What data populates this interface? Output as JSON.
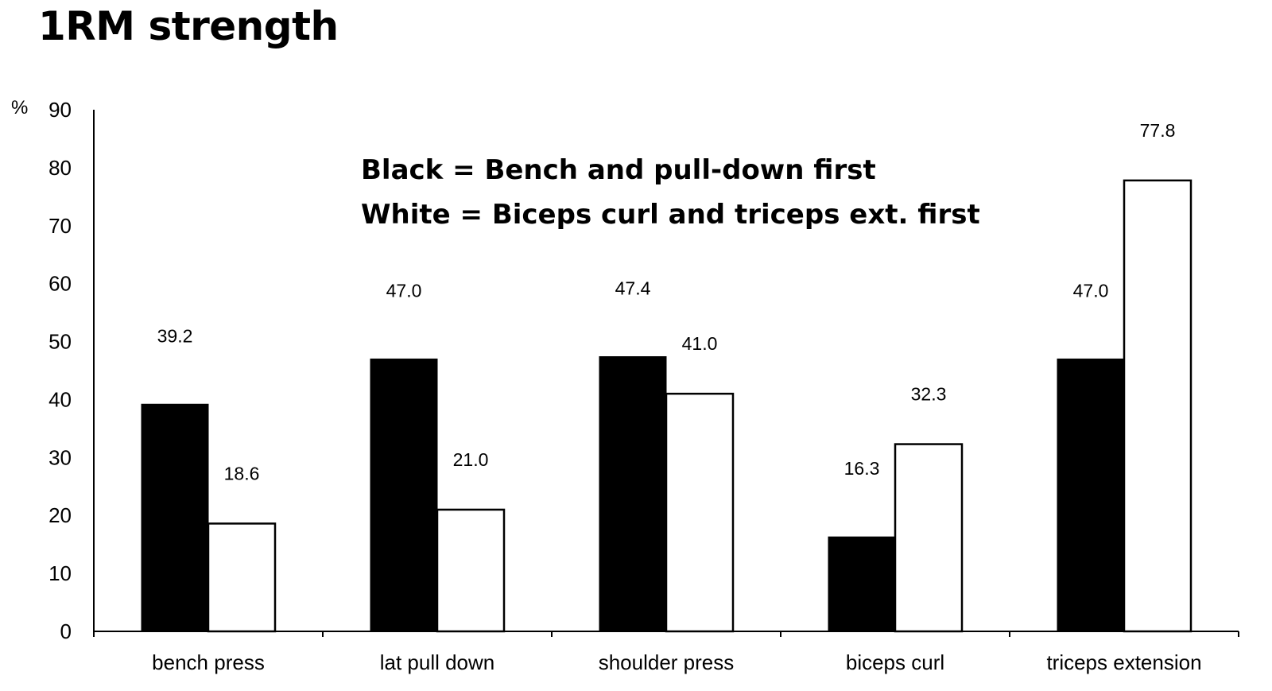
{
  "chart_data": {
    "type": "bar",
    "title": "1RM strength",
    "ylabel": "%",
    "xlabel": "",
    "ylim": [
      0,
      90
    ],
    "yticks": [
      0,
      10,
      20,
      30,
      40,
      50,
      60,
      70,
      80,
      90
    ],
    "grid": false,
    "categories": [
      "bench press",
      "lat pull down",
      "shoulder press",
      "biceps curl",
      "triceps extension"
    ],
    "series": [
      {
        "color": "#000000",
        "values": [
          39.2,
          47.0,
          47.4,
          16.3,
          47.0
        ],
        "labels": [
          "39.2",
          "47.0",
          "47.4",
          "16.3",
          "47.0"
        ]
      },
      {
        "color": "#ffffff",
        "values": [
          18.6,
          21.0,
          41.0,
          32.3,
          77.8
        ],
        "labels": [
          "18.6",
          "21.0",
          "41.0",
          "32.3",
          "77.8"
        ]
      }
    ],
    "annotations": [
      "Black = Bench and pull-down first",
      "White = Biceps curl and triceps ext. first"
    ]
  }
}
